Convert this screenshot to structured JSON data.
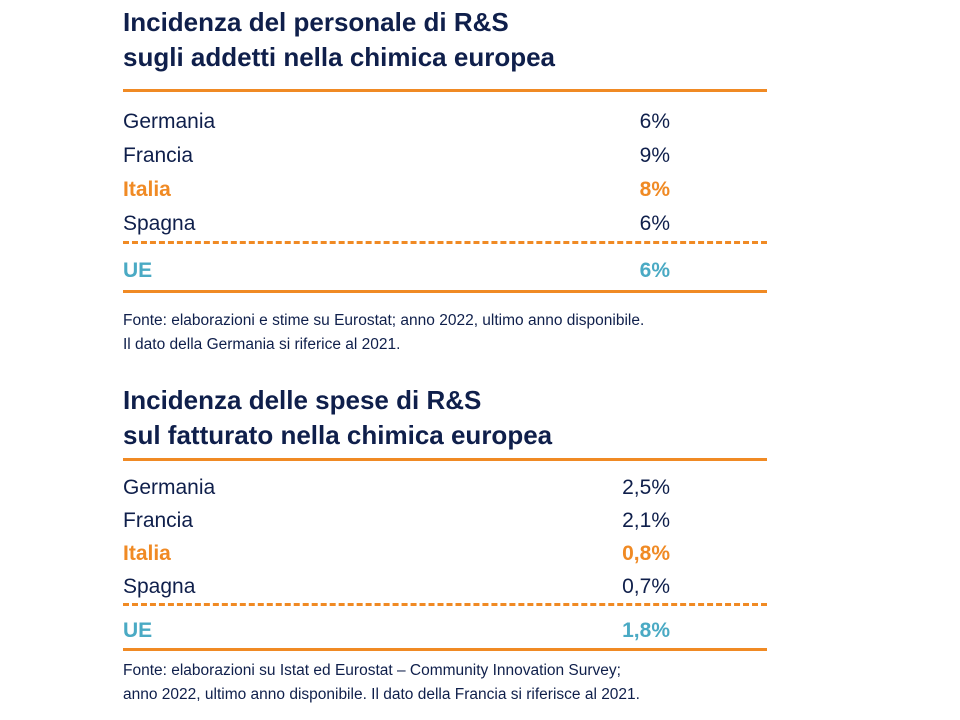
{
  "colors": {
    "text": "#0f1f4b",
    "accent": "#f08a24",
    "eu": "#4aaac4"
  },
  "sections": [
    {
      "title_lines": [
        "Incidenza del personale di R&S",
        "sugli addetti nella chimica europea"
      ],
      "rows": [
        {
          "country": "Germania",
          "value": "6%"
        },
        {
          "country": "Francia",
          "value": "9%"
        },
        {
          "country": "Italia",
          "value": "8%"
        },
        {
          "country": "Spagna",
          "value": "6%"
        }
      ],
      "total": {
        "country": "UE",
        "value": "6%"
      },
      "note_lines": [
        "Fonte: elaborazioni e stime su Eurostat; anno 2022, ultimo anno disponibile.",
        "Il dato della Germania si riferice al 2021."
      ]
    },
    {
      "title_lines": [
        "Incidenza delle spese di R&S",
        "sul fatturato nella chimica europea"
      ],
      "rows": [
        {
          "country": "Germania",
          "value": "2,5%"
        },
        {
          "country": "Francia",
          "value": "2,1%"
        },
        {
          "country": "Italia",
          "value": "0,8%"
        },
        {
          "country": "Spagna",
          "value": "0,7%"
        }
      ],
      "total": {
        "country": "UE",
        "value": "1,8%"
      },
      "note_lines": [
        "Fonte: elaborazioni su Istat ed Eurostat – Community Innovation Survey;",
        "anno 2022, ultimo anno disponibile. Il dato della Francia si riferisce al 2021."
      ]
    }
  ]
}
